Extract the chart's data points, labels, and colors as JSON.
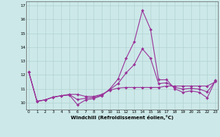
{
  "xlabel": "Windchill (Refroidissement éolien,°C)",
  "background_color": "#cce8e8",
  "grid_color": "#aacccc",
  "line_color": "#993399",
  "xlim_min": -0.3,
  "xlim_max": 23.3,
  "ylim_min": 9.5,
  "ylim_max": 17.3,
  "yticks": [
    10,
    11,
    12,
    13,
    14,
    15,
    16,
    17
  ],
  "xticks": [
    0,
    1,
    2,
    3,
    4,
    5,
    6,
    7,
    8,
    9,
    10,
    11,
    12,
    13,
    14,
    15,
    16,
    17,
    18,
    19,
    20,
    21,
    22,
    23
  ],
  "series": [
    [
      12.2,
      10.1,
      10.2,
      10.4,
      10.5,
      10.55,
      9.85,
      10.2,
      10.3,
      10.5,
      11.0,
      11.7,
      13.2,
      14.4,
      16.65,
      15.3,
      11.65,
      11.65,
      11.0,
      10.75,
      10.85,
      10.75,
      10.35,
      11.6
    ],
    [
      12.2,
      10.1,
      10.2,
      10.4,
      10.5,
      10.6,
      10.6,
      10.45,
      10.45,
      10.6,
      10.9,
      11.05,
      11.1,
      11.1,
      11.1,
      11.1,
      11.1,
      11.2,
      11.2,
      11.2,
      11.2,
      11.2,
      11.2,
      11.5
    ],
    [
      12.2,
      10.1,
      10.2,
      10.4,
      10.5,
      10.58,
      10.22,
      10.32,
      10.38,
      10.55,
      10.95,
      11.38,
      12.15,
      12.75,
      13.88,
      13.2,
      11.38,
      11.43,
      11.1,
      10.98,
      11.03,
      10.98,
      10.78,
      11.55
    ]
  ]
}
